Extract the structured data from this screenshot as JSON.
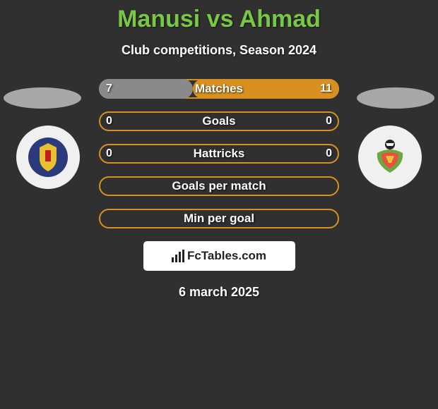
{
  "title": "Manusi vs Ahmad",
  "title_color": "#78c843",
  "subtitle": "Club competitions, Season 2024",
  "background_color": "#303030",
  "player_left": {
    "ellipse_color": "#a8a8a8",
    "badge_outer": "#f0f0f0",
    "badge_inner": "#2a3a7a",
    "badge_accent": "#e8c030"
  },
  "player_right": {
    "ellipse_color": "#a8a8a8",
    "badge_outer": "#f0f0f0",
    "badge_inner": "#e85040",
    "badge_accent": "#6aa840"
  },
  "bar_border_color": "#d89020",
  "bar_fill_left": "#8a8a8a",
  "bar_fill_right": "#d89020",
  "rows": [
    {
      "label": "Matches",
      "left_val": "7",
      "right_val": "11",
      "left_pct": 39,
      "right_pct": 61
    },
    {
      "label": "Goals",
      "left_val": "0",
      "right_val": "0",
      "left_pct": 0,
      "right_pct": 0
    },
    {
      "label": "Hattricks",
      "left_val": "0",
      "right_val": "0",
      "left_pct": 0,
      "right_pct": 0
    },
    {
      "label": "Goals per match",
      "left_val": "",
      "right_val": "",
      "left_pct": 0,
      "right_pct": 0
    },
    {
      "label": "Min per goal",
      "left_val": "",
      "right_val": "",
      "left_pct": 0,
      "right_pct": 0
    }
  ],
  "footer_brand": "FcTables.com",
  "date_text": "6 march 2025"
}
